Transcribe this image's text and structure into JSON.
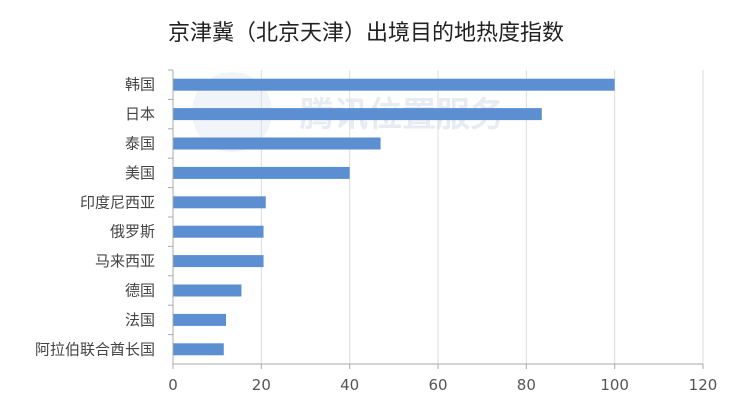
{
  "chart_data": {
    "type": "bar",
    "orientation": "horizontal",
    "title": "京津冀（北京天津）出境目的地热度指数",
    "xlabel": "",
    "ylabel": "",
    "categories": [
      "韩国",
      "日本",
      "泰国",
      "美国",
      "印度尼西亚",
      "俄罗斯",
      "马来西亚",
      "德国",
      "法国",
      "阿拉伯联合酋长国"
    ],
    "values": [
      100,
      83.5,
      47,
      40,
      21,
      20.5,
      20.5,
      15.5,
      12,
      11.5
    ],
    "xlim": [
      0,
      120
    ],
    "xticks": [
      "0",
      "20",
      "40",
      "60",
      "80",
      "100",
      "120"
    ],
    "grid": "vertical",
    "legend": "none",
    "colors": {
      "bar": "#5b8fd1",
      "grid": "#dddddd",
      "axis": "#aaaaaa"
    }
  },
  "watermark": {
    "text": "腾讯位置服务"
  }
}
